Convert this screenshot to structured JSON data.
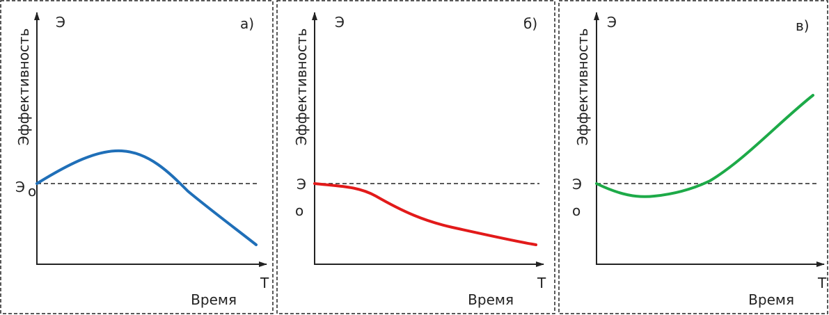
{
  "panels": [
    {
      "label": "а)",
      "y_axis_label": "Эффективность",
      "y_axis_symbol": "Э",
      "baseline_symbol": "Э",
      "baseline_subscript": "о",
      "x_axis_symbol": "Т",
      "x_axis_label": "Время"
    },
    {
      "label": "б)",
      "y_axis_label": "Эффективность",
      "y_axis_symbol": "Э",
      "baseline_symbol": "Э",
      "baseline_subscript": "о",
      "x_axis_symbol": "Т",
      "x_axis_label": "Время"
    },
    {
      "label": "в)",
      "y_axis_label": "Эффективность",
      "y_axis_symbol": "Э",
      "baseline_symbol": "Э",
      "baseline_subscript": "о",
      "x_axis_symbol": "Т",
      "x_axis_label": "Время"
    }
  ]
}
